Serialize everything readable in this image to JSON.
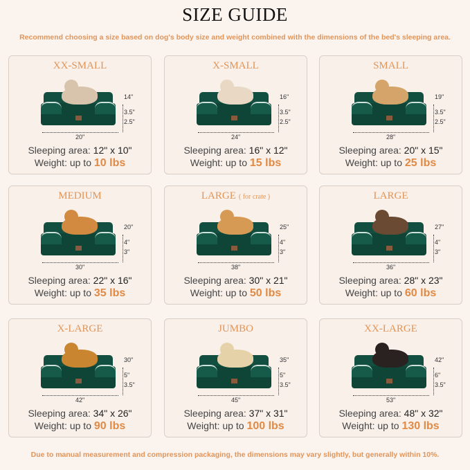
{
  "title": "SIZE GUIDE",
  "subtitle": "Recommend choosing a size based on dog's body size and weight combined with the dimensions of the bed's sleeping area.",
  "footer": "Due to manual measurement and compression packaging, the dimensions may vary slightly, but generally within 10%.",
  "labels": {
    "sleeping": "Sleeping area:",
    "weight": "Weight: up to"
  },
  "colors": {
    "accent": "#e39455",
    "bed": "#0e4536",
    "background": "#fbf3ee"
  },
  "sizes": [
    {
      "name": "XX-SMALL",
      "note": "",
      "pet": "cat",
      "width": "20\"",
      "depth": "14\"",
      "h1": "3.5\"",
      "h2": "2.5\"",
      "sleeping": "12\" x 10\"",
      "weight": "10 lbs"
    },
    {
      "name": "X-SMALL",
      "note": "",
      "pet": "dog",
      "width": "24\"",
      "depth": "16\"",
      "h1": "3.5\"",
      "h2": "2.5\"",
      "sleeping": "16\" x 12\"",
      "weight": "15 lbs"
    },
    {
      "name": "SMALL",
      "note": "",
      "pet": "dog",
      "width": "28\"",
      "depth": "19\"",
      "h1": "3.5\"",
      "h2": "2.5\"",
      "sleeping": "20\" x 15\"",
      "weight": "25 lbs"
    },
    {
      "name": "MEDIUM",
      "note": "",
      "pet": "dog",
      "width": "30\"",
      "depth": "20\"",
      "h1": "4\"",
      "h2": "3\"",
      "sleeping": "22\" x 16\"",
      "weight": "35 lbs"
    },
    {
      "name": "LARGE",
      "note": "( for crate )",
      "pet": "dog",
      "width": "38\"",
      "depth": "25\"",
      "h1": "4\"",
      "h2": "3\"",
      "sleeping": "30\" x 21\"",
      "weight": "50 lbs"
    },
    {
      "name": "LARGE",
      "note": "",
      "pet": "dog",
      "width": "36\"",
      "depth": "27\"",
      "h1": "4\"",
      "h2": "3\"",
      "sleeping": "28\" x 23\"",
      "weight": "60 lbs"
    },
    {
      "name": "X-LARGE",
      "note": "",
      "pet": "dog",
      "width": "42\"",
      "depth": "30\"",
      "h1": "5\"",
      "h2": "3.5\"",
      "sleeping": "34\" x 26\"",
      "weight": "90 lbs"
    },
    {
      "name": "JUMBO",
      "note": "",
      "pet": "dog",
      "width": "45\"",
      "depth": "35\"",
      "h1": "5\"",
      "h2": "3.5\"",
      "sleeping": "37\" x 31\"",
      "weight": "100 lbs"
    },
    {
      "name": "XX-LARGE",
      "note": "",
      "pet": "dog",
      "width": "53\"",
      "depth": "42\"",
      "h1": "6\"",
      "h2": "3.5\"",
      "sleeping": "48\" x 32\"",
      "weight": "130 lbs"
    }
  ]
}
